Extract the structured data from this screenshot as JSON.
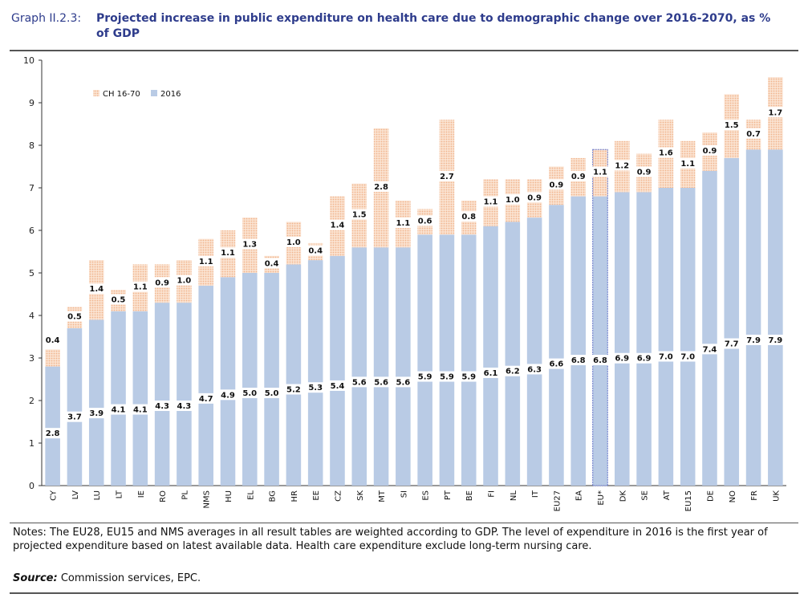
{
  "header": {
    "graph_label": "Graph II.2.3:",
    "title": "Projected increase in public expenditure on health care due to demographic change over 2016-2070, as % of GDP"
  },
  "notes": {
    "text": "Notes: The EU28, EU15 and NMS averages in all result tables are weighted according to GDP. The level of expenditure in 2016 is the first year of projected expenditure based on latest available data. Health care expenditure exclude long-term nursing care.",
    "source_label": "Source:",
    "source_text": " Commission services, EPC."
  },
  "colors": {
    "base": "#b9cbe5",
    "change": "#f6c9a9",
    "highlight_border": "#6272c9",
    "axis": "#333333"
  },
  "chart_data": {
    "type": "bar",
    "stacked": true,
    "categories": [
      "CY",
      "LV",
      "LU",
      "LT",
      "IE",
      "RO",
      "PL",
      "NMS",
      "HU",
      "EL",
      "BG",
      "HR",
      "EE",
      "CZ",
      "SK",
      "MT",
      "SI",
      "ES",
      "PT",
      "BE",
      "FI",
      "NL",
      "IT",
      "EU27",
      "EA",
      "EU*",
      "DK",
      "SE",
      "AT",
      "EU15",
      "DE",
      "NO",
      "FR",
      "UK"
    ],
    "series": [
      {
        "name": "2016",
        "values": [
          2.8,
          3.7,
          3.9,
          4.1,
          4.1,
          4.3,
          4.3,
          4.7,
          4.9,
          5.0,
          5.0,
          5.2,
          5.3,
          5.4,
          5.6,
          5.6,
          5.6,
          5.9,
          5.9,
          5.9,
          6.1,
          6.2,
          6.3,
          6.6,
          6.8,
          6.8,
          6.9,
          6.9,
          7.0,
          7.0,
          7.4,
          7.7,
          7.9,
          7.9
        ]
      },
      {
        "name": "CH 16-70",
        "values": [
          0.4,
          0.5,
          1.4,
          0.5,
          1.1,
          0.9,
          1.0,
          1.1,
          1.1,
          1.3,
          0.4,
          1.0,
          0.4,
          1.4,
          1.5,
          2.8,
          1.1,
          0.6,
          2.7,
          0.8,
          1.1,
          1.0,
          0.9,
          0.9,
          0.9,
          1.1,
          1.2,
          0.9,
          1.6,
          1.1,
          0.9,
          1.5,
          0.7,
          1.7
        ]
      }
    ],
    "highlight": "EU*",
    "ylim": [
      0,
      10
    ],
    "yticks": [
      "0",
      "1",
      "2",
      "3",
      "4",
      "5",
      "6",
      "7",
      "8",
      "9",
      "10"
    ],
    "legend_position": "top-left",
    "grid": false
  }
}
